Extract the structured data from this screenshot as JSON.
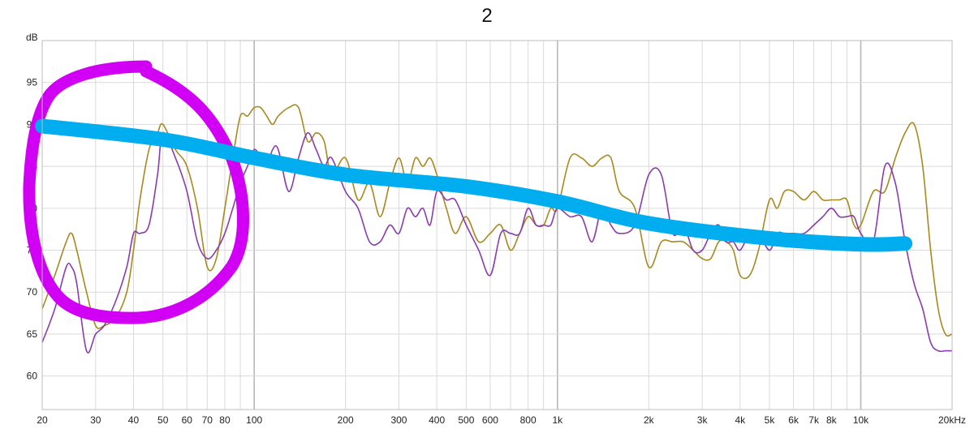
{
  "chart_data": {
    "type": "line",
    "title": "2",
    "ylabel": "dB",
    "xscale": "log",
    "xlim": [
      20,
      20000
    ],
    "ylim": [
      56,
      100
    ],
    "grid": true,
    "x_tick_labels": [
      {
        "value": 20,
        "label": "20"
      },
      {
        "value": 30,
        "label": "30"
      },
      {
        "value": 40,
        "label": "40"
      },
      {
        "value": 50,
        "label": "50"
      },
      {
        "value": 60,
        "label": "60"
      },
      {
        "value": 70,
        "label": "70"
      },
      {
        "value": 80,
        "label": "80"
      },
      {
        "value": 100,
        "label": "100"
      },
      {
        "value": 200,
        "label": "200"
      },
      {
        "value": 300,
        "label": "300"
      },
      {
        "value": 400,
        "label": "400"
      },
      {
        "value": 500,
        "label": "500"
      },
      {
        "value": 600,
        "label": "600"
      },
      {
        "value": 800,
        "label": "800"
      },
      {
        "value": 1000,
        "label": "1k"
      },
      {
        "value": 2000,
        "label": "2k"
      },
      {
        "value": 3000,
        "label": "3k"
      },
      {
        "value": 4000,
        "label": "4k"
      },
      {
        "value": 5000,
        "label": "5k"
      },
      {
        "value": 6000,
        "label": "6k"
      },
      {
        "value": 7000,
        "label": "7k"
      },
      {
        "value": 8000,
        "label": "8k"
      },
      {
        "value": 10000,
        "label": "10k"
      },
      {
        "value": 20000,
        "label": "20kHz"
      }
    ],
    "y_tick_labels": [
      {
        "value": 95,
        "label": "95"
      },
      {
        "value": 90,
        "label": "90"
      },
      {
        "value": 85,
        "label": "85"
      },
      {
        "value": 80,
        "label": "80"
      },
      {
        "value": 75,
        "label": "75"
      },
      {
        "value": 70,
        "label": "70"
      },
      {
        "value": 65,
        "label": "65"
      },
      {
        "value": 60,
        "label": "60"
      }
    ],
    "series": [
      {
        "color": "#a8891f",
        "x": [
          20,
          22,
          24,
          25,
          26,
          28,
          30,
          32,
          35,
          38,
          40,
          42,
          45,
          48,
          50,
          55,
          60,
          65,
          70,
          75,
          80,
          85,
          90,
          95,
          100,
          105,
          110,
          115,
          120,
          130,
          140,
          150,
          160,
          170,
          180,
          200,
          220,
          240,
          260,
          280,
          300,
          320,
          340,
          360,
          380,
          400,
          430,
          460,
          500,
          550,
          600,
          650,
          700,
          750,
          800,
          850,
          900,
          950,
          1000,
          1100,
          1200,
          1300,
          1400,
          1500,
          1600,
          1800,
          2000,
          2200,
          2400,
          2600,
          2800,
          3000,
          3200,
          3400,
          3600,
          3800,
          4000,
          4300,
          4600,
          5000,
          5300,
          5600,
          6000,
          6500,
          7000,
          7500,
          8000,
          8500,
          9000,
          9500,
          10000,
          11000,
          12000,
          13000,
          14000,
          15000,
          16000,
          17000,
          18000,
          19000,
          20000
        ],
        "y": [
          68,
          72,
          76,
          77,
          75,
          70,
          66,
          66,
          67,
          70,
          75,
          81,
          87,
          89,
          90,
          87,
          85,
          80,
          73,
          74,
          80,
          86,
          91,
          91,
          92,
          92,
          91,
          90,
          91,
          92,
          92,
          88,
          89,
          88,
          84,
          86,
          81,
          83,
          79,
          83,
          86,
          83,
          86,
          85,
          86,
          84,
          80,
          77,
          79,
          76,
          77,
          78,
          75,
          77,
          79,
          78,
          78,
          80,
          80,
          86,
          86,
          85,
          86,
          86,
          82,
          80,
          73,
          76,
          76,
          76,
          75,
          74,
          74,
          76,
          76,
          75,
          72,
          72,
          75,
          81,
          80,
          82,
          82,
          81,
          82,
          81,
          81,
          81,
          81,
          78,
          78,
          82,
          82,
          86,
          89,
          90,
          85,
          75,
          68,
          65,
          65
        ]
      },
      {
        "color": "#8a3bb0",
        "x": [
          20,
          22,
          24,
          25,
          26,
          28,
          30,
          32,
          35,
          38,
          40,
          42,
          45,
          48,
          50,
          55,
          60,
          65,
          70,
          75,
          80,
          85,
          90,
          95,
          100,
          105,
          110,
          115,
          120,
          130,
          140,
          150,
          160,
          170,
          180,
          200,
          220,
          240,
          260,
          280,
          300,
          320,
          340,
          360,
          380,
          400,
          430,
          460,
          500,
          550,
          600,
          650,
          700,
          750,
          800,
          850,
          900,
          950,
          1000,
          1100,
          1200,
          1300,
          1400,
          1500,
          1600,
          1800,
          2000,
          2200,
          2400,
          2600,
          2800,
          3000,
          3200,
          3400,
          3600,
          3800,
          4000,
          4300,
          4600,
          5000,
          5300,
          5600,
          6000,
          6500,
          7000,
          7500,
          8000,
          8500,
          9000,
          9500,
          10000,
          11000,
          12000,
          13000,
          14000,
          15000,
          16000,
          17000,
          18000,
          19000,
          20000
        ],
        "y": [
          64,
          68,
          73,
          73,
          71,
          63,
          65,
          66,
          69,
          73,
          77,
          77,
          78,
          84,
          89,
          86,
          82,
          76,
          74,
          75,
          77,
          80,
          83,
          85,
          87,
          86,
          85,
          87,
          87,
          82,
          86,
          89,
          87,
          85,
          86,
          82,
          80,
          76,
          76,
          78,
          77,
          80,
          79,
          80,
          78,
          82,
          81,
          81,
          78,
          75,
          72,
          77,
          77,
          77,
          80,
          78,
          78,
          78,
          80,
          79,
          79,
          76,
          80,
          78,
          77,
          78,
          84,
          84,
          77,
          78,
          75,
          75,
          77,
          78,
          76,
          76,
          75,
          77,
          77,
          75,
          77,
          77,
          77,
          77,
          78,
          79,
          80,
          79,
          79,
          79,
          77,
          76,
          85,
          83,
          76,
          71,
          68,
          64,
          63,
          63,
          63
        ]
      }
    ],
    "annotations": [
      {
        "type": "hand-drawn-circle",
        "color": "#d100f5"
      },
      {
        "type": "hand-drawn-trend-line",
        "color": "#00aef0",
        "x": [
          20,
          50,
          100,
          200,
          500,
          1000,
          2000,
          5000,
          10000,
          14000
        ],
        "y": [
          89.8,
          88.2,
          86,
          84,
          82.6,
          80.8,
          78.2,
          76.4,
          75.7,
          75.8
        ]
      }
    ]
  }
}
